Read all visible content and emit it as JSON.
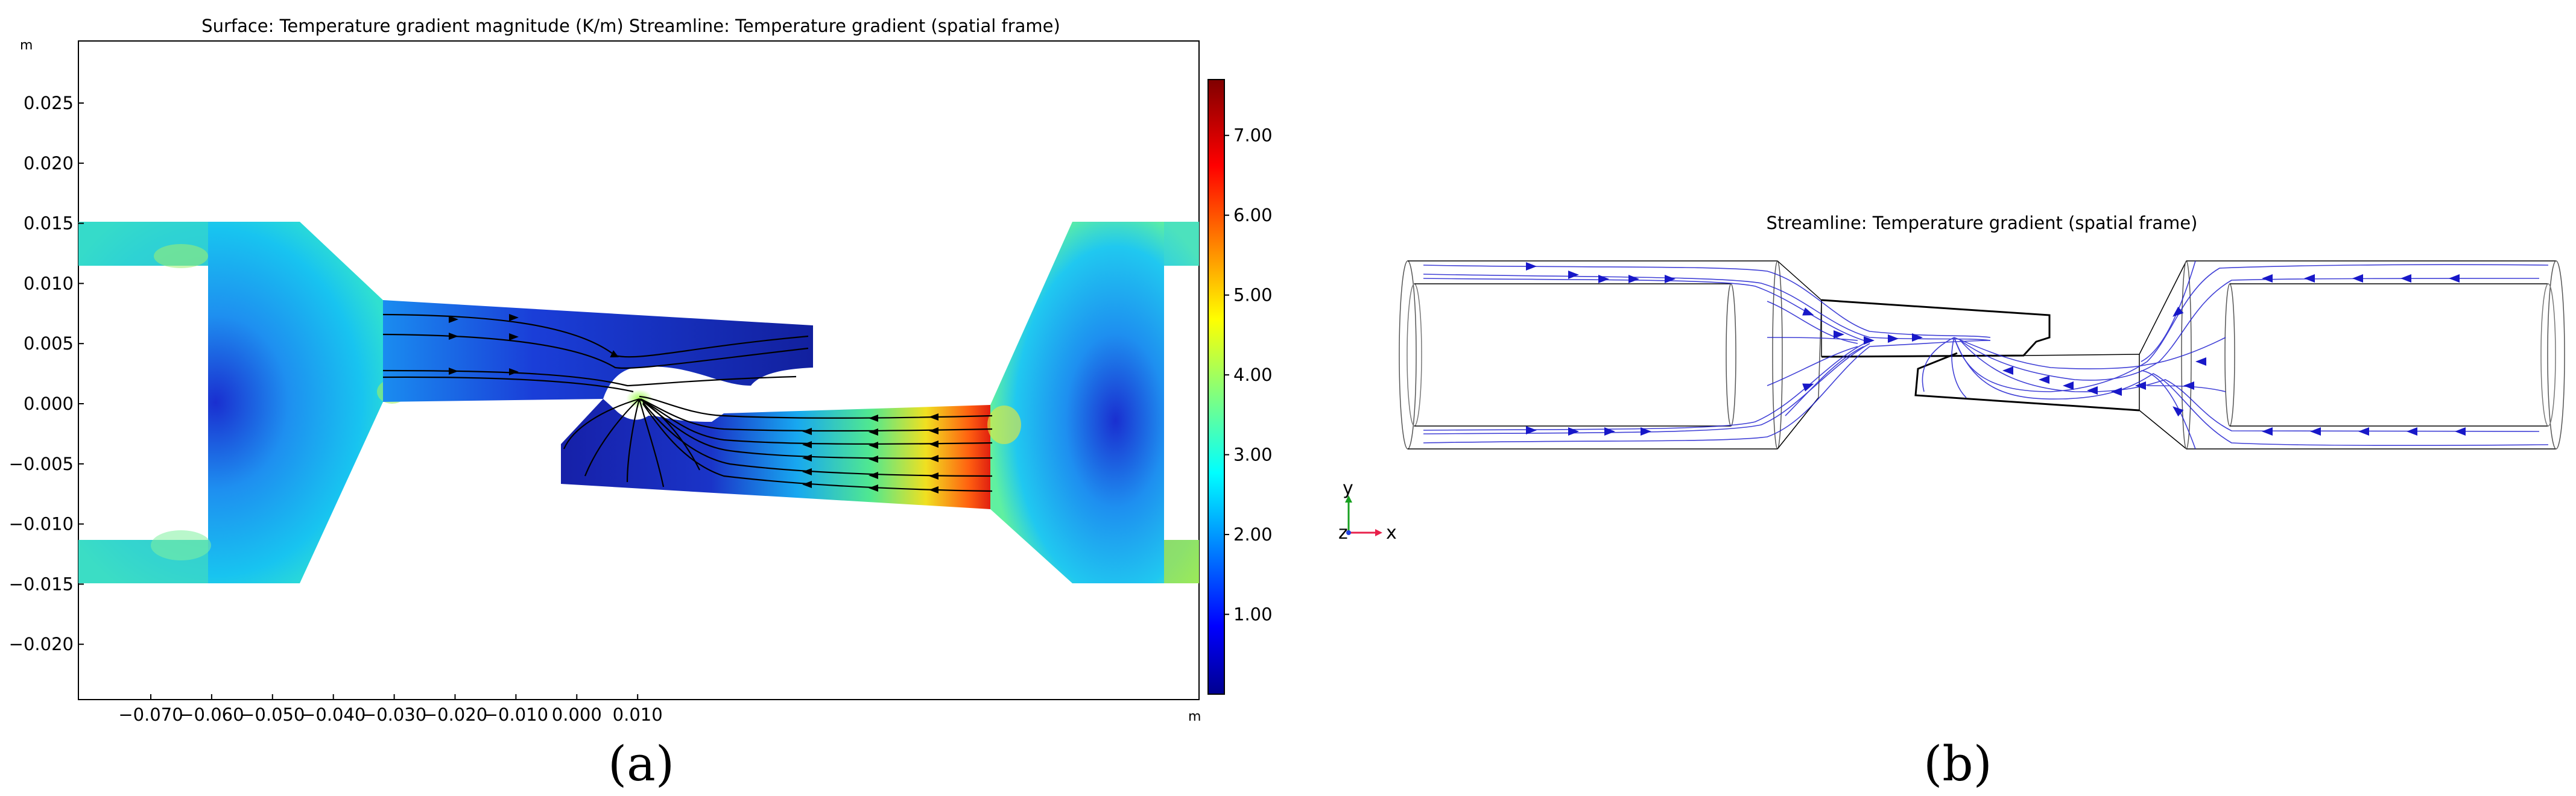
{
  "panel_a": {
    "title": "Surface: Temperature gradient magnitude (K/m)  Streamline: Temperature gradient (spatial frame)",
    "unit_y": "m",
    "unit_x": "m",
    "y_ticks": [
      "0.025",
      "0.020",
      "0.015",
      "0.010",
      "0.005",
      "0.000",
      "−0.005",
      "−0.010",
      "−0.015",
      "−0.020"
    ],
    "x_ticks": [
      "−0.070",
      "−0.060",
      "−0.050",
      "−0.040",
      "−0.030",
      "−0.020",
      "−0.010",
      "0.000",
      "0.010"
    ],
    "colorbar_ticks": [
      "7.00",
      "6.00",
      "5.00",
      "4.00",
      "3.00",
      "2.00",
      "1.00"
    ],
    "colorbar_range": [
      0.0,
      7.7
    ],
    "caption": "(a)"
  },
  "panel_b": {
    "title": "Streamline: Temperature gradient (spatial frame)",
    "triad": {
      "y_label": "y",
      "z_label": "z",
      "x_label": "x"
    },
    "caption": "(b)",
    "streamline_color": "#2020d0"
  },
  "colors": {
    "jet_low": "#00008f",
    "jet_mid": "#00c8ff",
    "jet_high": "#800000",
    "axis_x": "#e8204a",
    "axis_y": "#18a020",
    "axis_z": "#2040e0"
  }
}
